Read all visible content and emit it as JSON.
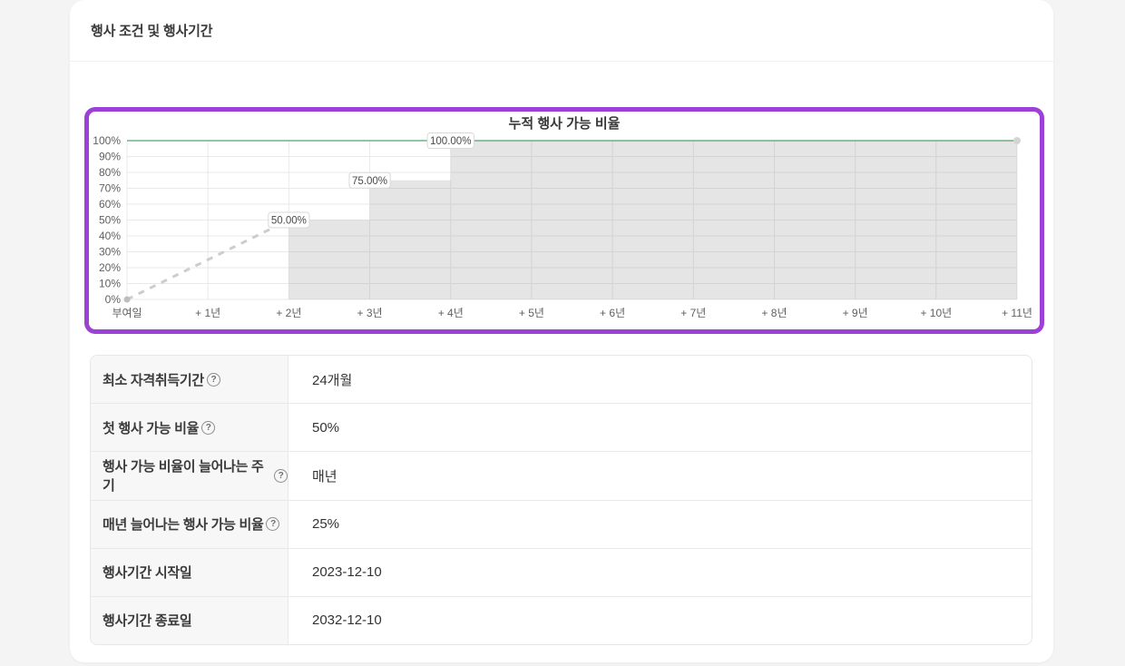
{
  "card": {
    "title": "행사 조건 및 행사기간"
  },
  "colors": {
    "accent_purple": "#9c40d6",
    "vesting_full_green": "#55a06e",
    "area_fill_gray": "#e6e6e6",
    "dashed_gray": "#cdcdcd",
    "grid_gray": "#e9e9e9"
  },
  "chart_data": {
    "type": "area",
    "title": "누적 행사 가능 비율",
    "categories": [
      "부여일",
      "+ 1년",
      "+ 2년",
      "+ 3년",
      "+ 4년",
      "+ 5년",
      "+ 6년",
      "+ 7년",
      "+ 8년",
      "+ 9년",
      "+ 10년",
      "+ 11년"
    ],
    "values": [
      0,
      null,
      50,
      75,
      100,
      100,
      100,
      100,
      100,
      100,
      100,
      100
    ],
    "value_labels": [
      {
        "index": 2,
        "value": 50,
        "text": "50.00%"
      },
      {
        "index": 3,
        "value": 75,
        "text": "75.00%"
      },
      {
        "index": 4,
        "value": 100,
        "text": "100.00%"
      }
    ],
    "pre_vesting_dashed_line": {
      "from": [
        0,
        0
      ],
      "to": [
        2,
        50
      ]
    },
    "step": "after",
    "ylim": [
      0,
      100
    ],
    "ytick_step": 10,
    "ytick_suffix": "%",
    "highlight_ytick": 100,
    "grid": true,
    "legend": false,
    "xlabel": "",
    "ylabel": ""
  },
  "table": {
    "help_icon": "?",
    "rows": [
      {
        "label": "최소 자격취득기간",
        "value": "24개월",
        "help": true
      },
      {
        "label": "첫 행사 가능 비율",
        "value": "50%",
        "help": true
      },
      {
        "label": "행사 가능 비율이 늘어나는 주기",
        "value": "매년",
        "help": true
      },
      {
        "label": "매년 늘어나는 행사 가능 비율",
        "value": "25%",
        "help": true
      },
      {
        "label": "행사기간 시작일",
        "value": "2023-12-10",
        "help": false
      },
      {
        "label": "행사기간 종료일",
        "value": "2032-12-10",
        "help": false
      }
    ]
  }
}
